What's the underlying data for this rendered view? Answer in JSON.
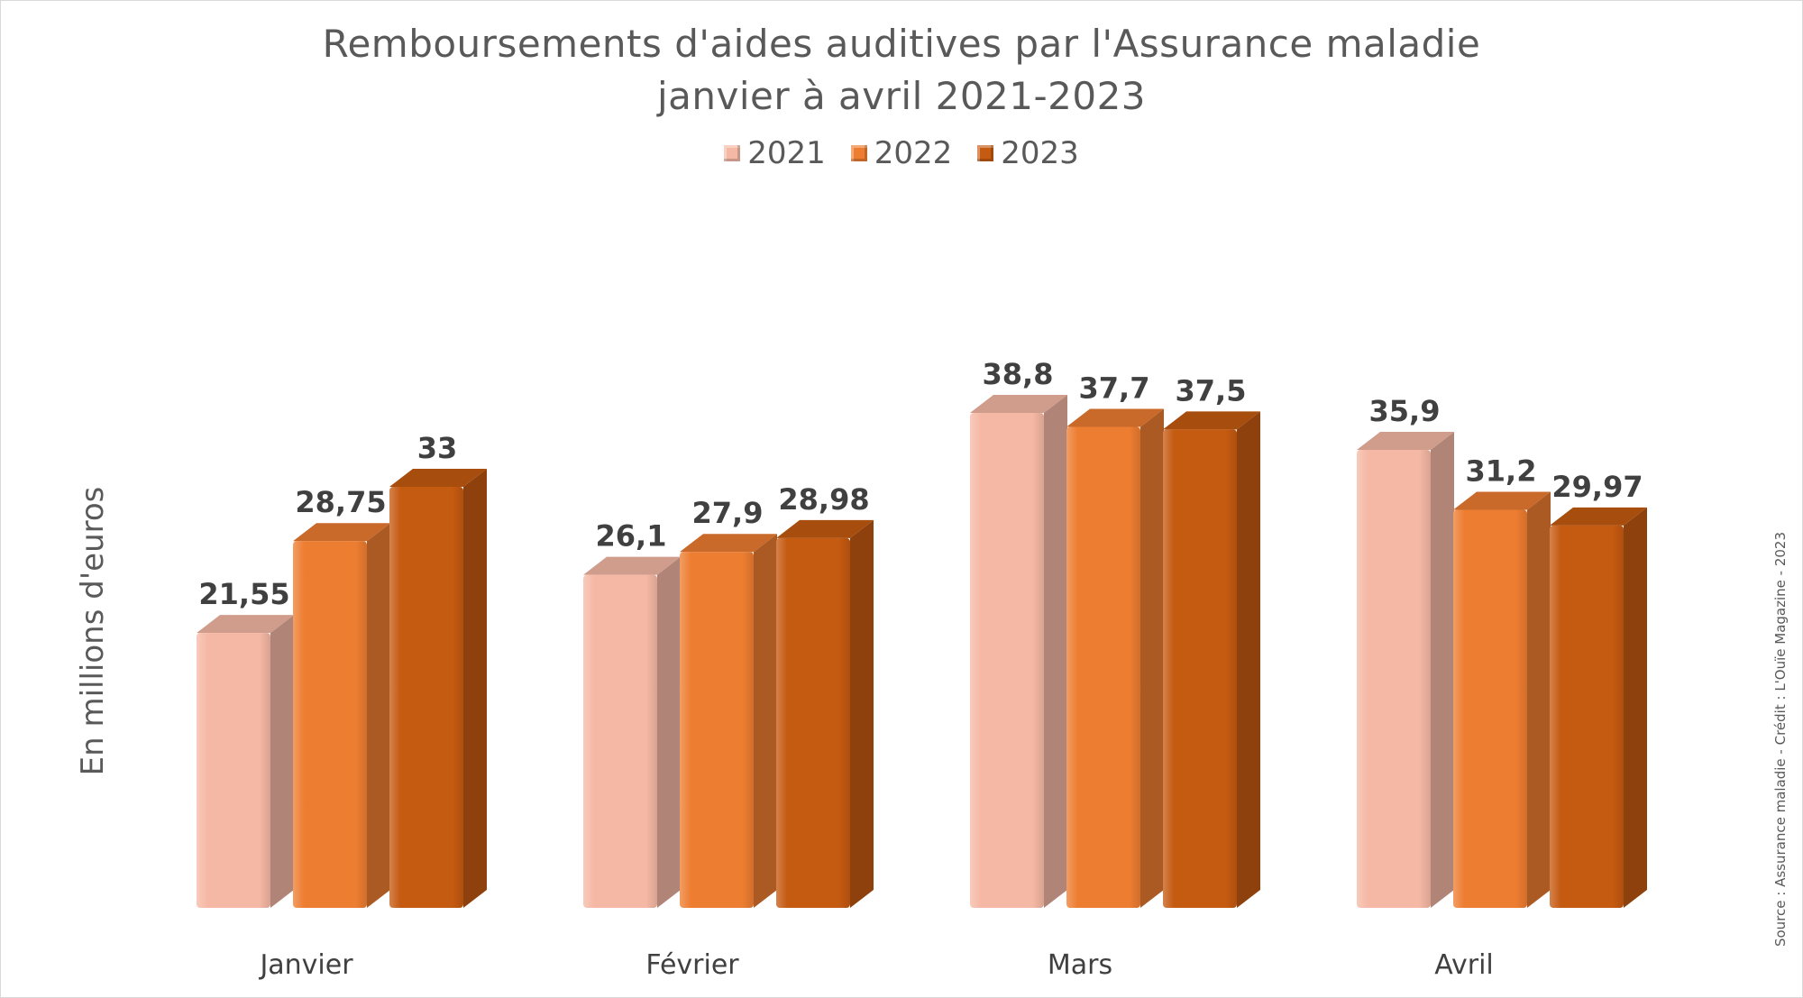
{
  "chart_data": {
    "type": "bar",
    "title": "Remboursements d'aides auditives par l'Assurance maladie",
    "subtitle": "janvier à avril 2021-2023",
    "ylabel": "En millions d'euros",
    "xlabel": "",
    "categories": [
      "Janvier",
      "Février",
      "Mars",
      "Avril"
    ],
    "series": [
      {
        "name": "2021",
        "values": [
          21.55,
          26.1,
          38.8,
          35.9
        ],
        "labels": [
          "21,55",
          "26,1",
          "38,8",
          "35,9"
        ],
        "color": "#F5B8A4"
      },
      {
        "name": "2022",
        "values": [
          28.75,
          27.9,
          37.7,
          31.2
        ],
        "labels": [
          "28,75",
          "27,9",
          "37,7",
          "31,2"
        ],
        "color": "#ED7D31"
      },
      {
        "name": "2023",
        "values": [
          33,
          28.98,
          37.5,
          29.97
        ],
        "labels": [
          "33",
          "28,98",
          "37,5",
          "29,97"
        ],
        "color": "#C55A11"
      }
    ],
    "ylim": [
      0,
      45
    ],
    "grid": false,
    "legend_position": "top",
    "style": "3d-column"
  },
  "source": "Source : Assurance maladie - Crédit : L'Ouïe Magazine - 2023"
}
